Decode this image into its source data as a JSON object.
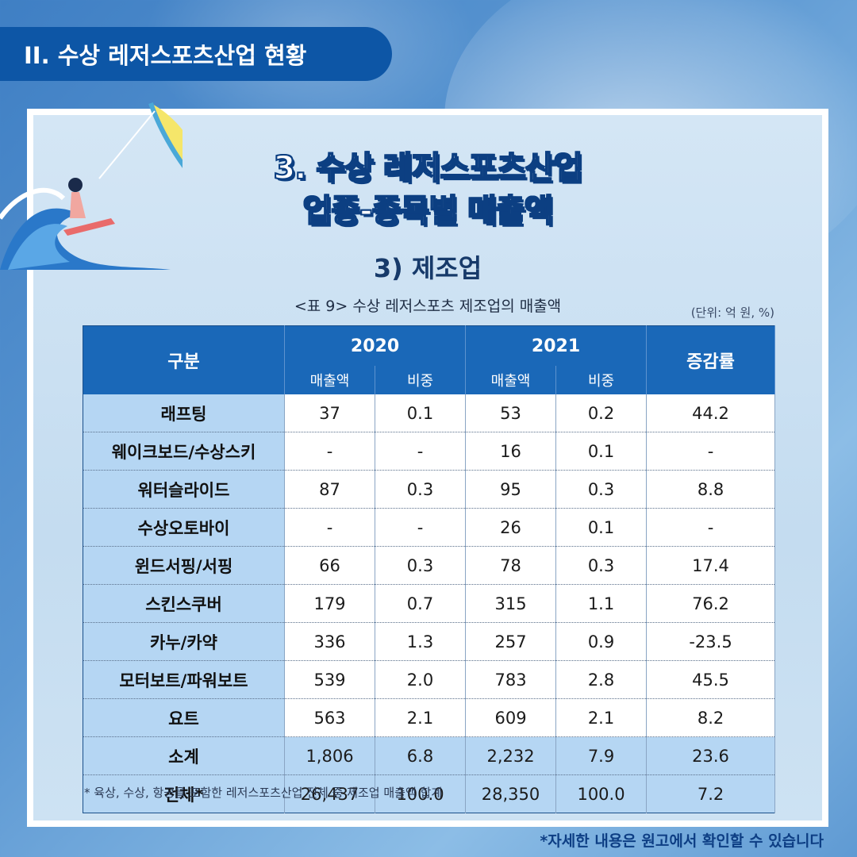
{
  "section_tab": "II. 수상 레저스포츠산업 현황",
  "title_line1": "3. 수상 레저스포츠산업",
  "title_line2": "업종-종목별 매출액",
  "subtitle": "3) 제조업",
  "table_caption": "<표 9> 수상 레저스포츠 제조업의 매출액",
  "unit_note": "(단위: 억 원, %)",
  "table": {
    "header_category": "구분",
    "header_year1": "2020",
    "header_year2": "2021",
    "header_change": "증감률",
    "header_sales": "매출액",
    "header_share": "비중",
    "rows": [
      {
        "label": "래프팅",
        "s2020": "37",
        "p2020": "0.1",
        "s2021": "53",
        "p2021": "0.2",
        "change": "44.2"
      },
      {
        "label": "웨이크보드/수상스키",
        "s2020": "-",
        "p2020": "-",
        "s2021": "16",
        "p2021": "0.1",
        "change": "-"
      },
      {
        "label": "워터슬라이드",
        "s2020": "87",
        "p2020": "0.3",
        "s2021": "95",
        "p2021": "0.3",
        "change": "8.8"
      },
      {
        "label": "수상오토바이",
        "s2020": "-",
        "p2020": "-",
        "s2021": "26",
        "p2021": "0.1",
        "change": "-"
      },
      {
        "label": "윈드서핑/서핑",
        "s2020": "66",
        "p2020": "0.3",
        "s2021": "78",
        "p2021": "0.3",
        "change": "17.4"
      },
      {
        "label": "스킨스쿠버",
        "s2020": "179",
        "p2020": "0.7",
        "s2021": "315",
        "p2021": "1.1",
        "change": "76.2"
      },
      {
        "label": "카누/카약",
        "s2020": "336",
        "p2020": "1.3",
        "s2021": "257",
        "p2021": "0.9",
        "change": "-23.5"
      },
      {
        "label": "모터보트/파워보트",
        "s2020": "539",
        "p2020": "2.0",
        "s2021": "783",
        "p2021": "2.8",
        "change": "45.5"
      },
      {
        "label": "요트",
        "s2020": "563",
        "p2020": "2.1",
        "s2021": "609",
        "p2021": "2.1",
        "change": "8.2"
      },
      {
        "label": "소계",
        "s2020": "1,806",
        "p2020": "6.8",
        "s2021": "2,232",
        "p2021": "7.9",
        "change": "23.6"
      },
      {
        "label": "전체*",
        "s2020": "26,437",
        "p2020": "100.0",
        "s2021": "28,350",
        "p2021": "100.0",
        "change": "7.2"
      }
    ]
  },
  "footnote": "* 육상, 수상, 항공을 포함한 레저스포츠산업 전체 중 제조업 매출액 합계",
  "bottom_note": "*자세한 내용은 원고에서 확인할 수 있습니다",
  "colors": {
    "tab_blue": "#0d56a6",
    "header_blue": "#1a68b8",
    "label_cell": "#b5d6f3",
    "title_outline": "#0c3f82"
  }
}
